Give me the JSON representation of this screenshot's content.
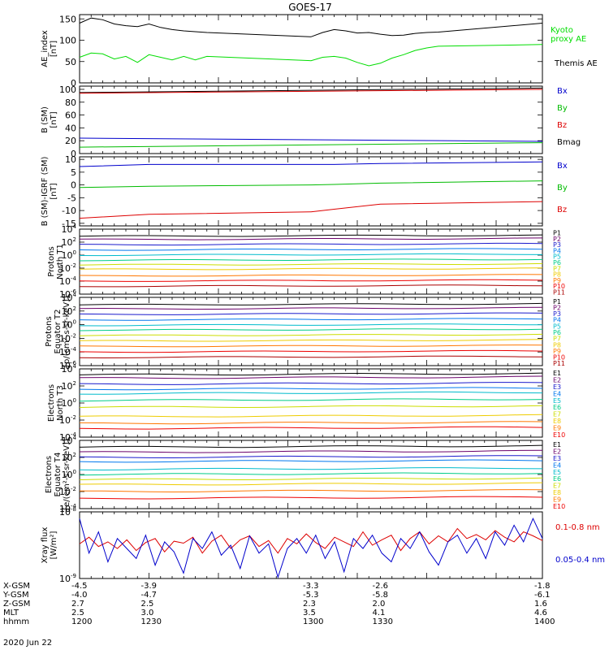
{
  "title": "GOES-17",
  "date": "2020 Jun 22",
  "colors": {
    "black": "#000000",
    "green": "#00dd00",
    "blue": "#0000cc",
    "red": "#dd0000",
    "probe": [
      "#000000",
      "#6a006a",
      "#1a1acc",
      "#0077ee",
      "#00bbcc",
      "#00cc88",
      "#ccdd00",
      "#eecc00",
      "#ff7700",
      "#ee0000",
      "#aa0000"
    ]
  },
  "chart_data": [
    {
      "type": "line",
      "ylabel": "AE_index [nT]",
      "ylim": [
        0,
        160
      ],
      "yticks": [
        "150",
        "100",
        "50",
        "0"
      ],
      "yticks_values": [
        150,
        100,
        50,
        0
      ],
      "legend": [
        {
          "text": "Kyoto proxy AE",
          "color": "#00dd00"
        },
        {
          "text": "Themis AE",
          "color": "#000000"
        }
      ],
      "x": [
        1200,
        1205,
        1210,
        1215,
        1220,
        1225,
        1230,
        1235,
        1240,
        1245,
        1250,
        1255,
        1300,
        1305,
        1310,
        1315,
        1320,
        1325,
        1330,
        1335,
        1340,
        1345,
        1350,
        1355,
        1400
      ],
      "series": [
        {
          "name": "Themis AE",
          "color": "#000000",
          "values": [
            140,
            152,
            148,
            138,
            134,
            132,
            138,
            130,
            125,
            122,
            120,
            118,
            108,
            118,
            125,
            122,
            117,
            118,
            114,
            111,
            112,
            116,
            118,
            119,
            140
          ]
        },
        {
          "name": "Kyoto proxy AE",
          "color": "#00dd00",
          "values": [
            60,
            70,
            68,
            56,
            62,
            48,
            66,
            60,
            54,
            62,
            54,
            62,
            52,
            60,
            62,
            58,
            48,
            40,
            46,
            58,
            66,
            76,
            82,
            86,
            90
          ]
        }
      ]
    },
    {
      "type": "line",
      "ylabel": "B (SM) [nT]",
      "ylim": [
        0,
        105
      ],
      "yticks": [
        "100",
        "80",
        "60",
        "40",
        "20",
        "0"
      ],
      "yticks_values": [
        100,
        80,
        60,
        40,
        20,
        0
      ],
      "legend": [
        {
          "text": "Bx",
          "color": "#0000cc"
        },
        {
          "text": "By",
          "color": "#00bb00"
        },
        {
          "text": "Bz",
          "color": "#dd0000"
        },
        {
          "text": "Bmag",
          "color": "#000000"
        }
      ],
      "x": [
        1200,
        1400
      ],
      "series": [
        {
          "name": "Bmag",
          "color": "#000000",
          "values": [
            95,
            102
          ]
        },
        {
          "name": "Bz",
          "color": "#dd0000",
          "values": [
            94,
            100
          ]
        },
        {
          "name": "Bx",
          "color": "#0000cc",
          "values": [
            24,
            19
          ]
        },
        {
          "name": "By",
          "color": "#00bb00",
          "values": [
            10,
            17
          ]
        }
      ]
    },
    {
      "type": "line",
      "ylabel": "B (SM)-IGRF (SM) [nT]",
      "ylim": [
        -16,
        11
      ],
      "yticks": [
        "10",
        "5",
        "0",
        "-5",
        "-10",
        "-15"
      ],
      "yticks_values": [
        10,
        5,
        0,
        -5,
        -10,
        -15
      ],
      "legend": [
        {
          "text": "Bx",
          "color": "#0000cc"
        },
        {
          "text": "By",
          "color": "#00bb00"
        },
        {
          "text": "Bz",
          "color": "#dd0000"
        }
      ],
      "x": [
        1200,
        1230,
        1300,
        1310,
        1330,
        1400
      ],
      "series": [
        {
          "name": "Bx",
          "color": "#0000cc",
          "values": [
            7.2,
            8.0,
            8.0,
            8.0,
            8.4,
            9.0
          ]
        },
        {
          "name": "By",
          "color": "#00bb00",
          "values": [
            -1.0,
            -0.5,
            0.0,
            0.2,
            0.7,
            1.6
          ]
        },
        {
          "name": "Bz",
          "color": "#dd0000",
          "values": [
            -13.0,
            -11.5,
            -10.5,
            -9.5,
            -7.5,
            -6.5
          ]
        }
      ]
    },
    {
      "type": "line",
      "ylabel": "Protons North T1",
      "log": true,
      "ylim": [
        -6,
        4
      ],
      "yticks": [
        "10^4",
        "10^2",
        "10^0",
        "10^-2",
        "10^-4",
        "10^-6"
      ],
      "yticks_values": [
        4,
        2,
        0,
        -2,
        -4,
        -6
      ],
      "legend": [
        "P1",
        "P2",
        "P3",
        "P4",
        "P5",
        "P6",
        "P7",
        "P8",
        "P9",
        "P10",
        "P11"
      ],
      "series_log10": [
        2.9,
        2.4,
        1.6,
        0.8,
        0.0,
        -0.8,
        -1.5,
        -2.2,
        -3.2,
        -4.0,
        -4.8
      ]
    },
    {
      "type": "line",
      "ylabel": "Protons Equator T2 [p/(cm²-s-sr-keV)]",
      "log": true,
      "ylim": [
        -6,
        4
      ],
      "yticks": [
        "10^4",
        "10^2",
        "10^0",
        "10^-2",
        "10^-4",
        "10^-6"
      ],
      "yticks_values": [
        4,
        2,
        0,
        -2,
        -4,
        -6
      ],
      "legend": [
        "P1",
        "P2",
        "P3",
        "P4",
        "P5",
        "P6",
        "P7",
        "P8",
        "P9",
        "P10",
        "P11"
      ],
      "series_log10": [
        2.9,
        2.3,
        1.5,
        0.7,
        -0.1,
        -0.8,
        -1.6,
        -2.4,
        -3.2,
        -4.0,
        -4.8
      ]
    },
    {
      "type": "line",
      "ylabel": "Electrons North T3",
      "log": true,
      "ylim": [
        -4,
        4
      ],
      "yticks": [
        "10^4",
        "10^2",
        "10^0",
        "10^-2",
        "10^-4"
      ],
      "yticks_values": [
        4,
        2,
        0,
        -2,
        -4
      ],
      "legend": [
        "E1",
        "E2",
        "E3",
        "E4",
        "E5",
        "E6",
        "E7",
        "E8",
        "E9",
        "E10"
      ],
      "series_log10": [
        3.3,
        2.9,
        2.2,
        1.6,
        1.1,
        0.3,
        -0.5,
        -1.6,
        -2.4,
        -3.0
      ]
    },
    {
      "type": "line",
      "ylabel": "Electrons Equator T4 [e/(cm²-s-sr-keV)]",
      "log": true,
      "ylim": [
        -4,
        4
      ],
      "yticks": [
        "10^4",
        "10^2",
        "10^0",
        "10^-2",
        "10^-4"
      ],
      "yticks_values": [
        4,
        2,
        0,
        -2,
        -4
      ],
      "legend": [
        "E1",
        "E2",
        "E3",
        "E4",
        "E5",
        "E6",
        "E7",
        "E8",
        "E9",
        "E10"
      ],
      "series_log10": [
        3.2,
        2.6,
        2.0,
        1.5,
        0.6,
        0.0,
        -0.6,
        -1.2,
        -2.0,
        -2.8
      ]
    },
    {
      "type": "line",
      "ylabel": "Xray flux [W/m²]",
      "log": true,
      "ylim": [
        -9,
        -8
      ],
      "yticks": [
        "10^-8",
        "10^-9"
      ],
      "yticks_values": [
        -8,
        -9
      ],
      "legend": [
        {
          "text": "0.1-0.8 nm",
          "color": "#dd0000"
        },
        {
          "text": "0.05-0.4 nm",
          "color": "#0000cc"
        }
      ],
      "series": [
        {
          "name": "0.1-0.8 nm",
          "color": "#dd0000",
          "values": [
            -8.48,
            -8.38,
            -8.52,
            -8.45,
            -8.55,
            -8.42,
            -8.58,
            -8.46,
            -8.4,
            -8.6,
            -8.44,
            -8.47,
            -8.38,
            -8.62,
            -8.44,
            -8.35,
            -8.55,
            -8.42,
            -8.36,
            -8.52,
            -8.43,
            -8.62,
            -8.4,
            -8.48,
            -8.33,
            -8.46,
            -8.55,
            -8.38,
            -8.45,
            -8.52,
            -8.3,
            -8.5,
            -8.42,
            -8.35,
            -8.58,
            -8.4,
            -8.3,
            -8.48,
            -8.36,
            -8.45,
            -8.25,
            -8.4,
            -8.34,
            -8.42,
            -8.28,
            -8.38,
            -8.45,
            -8.3,
            -8.36,
            -8.43
          ]
        },
        {
          "name": "0.05-0.4 nm",
          "color": "#0000cc",
          "values": [
            -8.1,
            -8.62,
            -8.3,
            -8.75,
            -8.4,
            -8.55,
            -8.7,
            -8.35,
            -8.8,
            -8.45,
            -8.6,
            -8.92,
            -8.4,
            -8.55,
            -8.3,
            -8.65,
            -8.5,
            -8.85,
            -8.36,
            -8.62,
            -8.48,
            -8.98,
            -8.55,
            -8.4,
            -8.62,
            -8.35,
            -8.7,
            -8.45,
            -8.9,
            -8.4,
            -8.55,
            -8.35,
            -8.62,
            -8.75,
            -8.4,
            -8.55,
            -8.3,
            -8.6,
            -8.8,
            -8.45,
            -8.35,
            -8.62,
            -8.4,
            -8.7,
            -8.3,
            -8.5,
            -8.2,
            -8.45,
            -8.1,
            -8.4
          ]
        }
      ]
    }
  ],
  "axis": {
    "row_labels": [
      "X-GSM",
      "Y-GSM",
      "Z-GSM",
      "MLT",
      "hhmm"
    ],
    "columns": [
      [
        "-4.5",
        "-4.0",
        "2.7",
        "2.5",
        "1200"
      ],
      [
        "-3.9",
        "-4.7",
        "2.5",
        "3.0",
        "1230"
      ],
      [
        "-3.3",
        "-5.3",
        "2.3",
        "3.5",
        "1300"
      ],
      [
        "-2.6",
        "-5.8",
        "2.0",
        "4.1",
        "1330"
      ],
      [
        "-1.8",
        "-6.1",
        "1.6",
        "4.6",
        "1400"
      ]
    ]
  }
}
